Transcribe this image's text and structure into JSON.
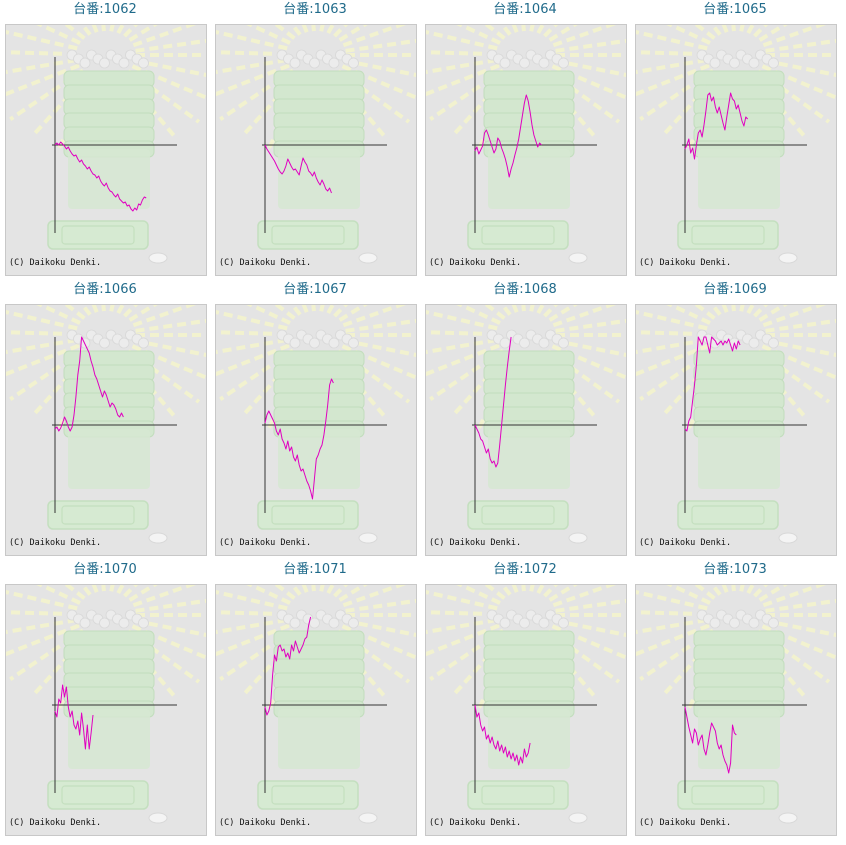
{
  "chart_data": [
    {
      "type": "line",
      "title": "台番:1062",
      "credit": "(C) Daikoku Denki.",
      "line_color": "#e000c0",
      "ylim": [
        -88,
        88
      ],
      "values": [
        0,
        2,
        0,
        3,
        1,
        -1,
        -4,
        -2,
        -6,
        -9,
        -11,
        -10,
        -14,
        -17,
        -15,
        -19,
        -21,
        -24,
        -22,
        -26,
        -29,
        -30,
        -33,
        -31,
        -36,
        -39,
        -41,
        -38,
        -43,
        -46,
        -47,
        -50,
        -52,
        -49,
        -54,
        -56,
        -58,
        -57,
        -61,
        -60,
        -64,
        -66,
        -63,
        -65,
        -59,
        -60,
        -55,
        -52,
        -53
      ]
    },
    {
      "type": "line",
      "title": "台番:1063",
      "credit": "(C) Daikoku Denki.",
      "line_color": "#e000c0",
      "ylim": [
        -88,
        88
      ],
      "values": [
        0,
        -4,
        -7,
        -10,
        -13,
        -16,
        -20,
        -24,
        -27,
        -29,
        -26,
        -21,
        -14,
        -18,
        -22,
        -25,
        -24,
        -27,
        -30,
        -21,
        -13,
        -17,
        -20,
        -26,
        -28,
        -31,
        -27,
        -33,
        -37,
        -40,
        -35,
        -39,
        -44,
        -46,
        -43,
        -48
      ]
    },
    {
      "type": "line",
      "title": "台番:1064",
      "credit": "(C) Daikoku Denki.",
      "line_color": "#e000c0",
      "ylim": [
        -88,
        88
      ],
      "values": [
        -6,
        -2,
        -9,
        -5,
        -1,
        12,
        15,
        10,
        4,
        -2,
        -8,
        -4,
        7,
        4,
        -3,
        -8,
        -14,
        -22,
        -32,
        -24,
        -18,
        -10,
        -3,
        6,
        18,
        30,
        42,
        50,
        44,
        33,
        20,
        10,
        4,
        -2,
        2,
        0
      ]
    },
    {
      "type": "line",
      "title": "台番:1065",
      "credit": "(C) Daikoku Denki.",
      "line_color": "#e000c0",
      "ylim": [
        -88,
        88
      ],
      "values": [
        -4,
        0,
        6,
        -8,
        -3,
        -14,
        0,
        12,
        15,
        8,
        20,
        34,
        50,
        52,
        44,
        48,
        38,
        32,
        38,
        30,
        22,
        15,
        28,
        40,
        52,
        46,
        44,
        36,
        40,
        32,
        24,
        19,
        28,
        26
      ]
    },
    {
      "type": "line",
      "title": "台番:1066",
      "credit": "(C) Daikoku Denki.",
      "line_color": "#e000c0",
      "ylim": [
        -88,
        88
      ],
      "values": [
        -4,
        -2,
        -6,
        -3,
        2,
        8,
        4,
        -2,
        -6,
        -2,
        10,
        28,
        50,
        64,
        88,
        84,
        80,
        76,
        72,
        64,
        58,
        50,
        46,
        40,
        34,
        28,
        34,
        30,
        24,
        18,
        22,
        20,
        16,
        10,
        8,
        12,
        8
      ]
    },
    {
      "type": "line",
      "title": "台番:1067",
      "credit": "(C) Daikoku Denki.",
      "line_color": "#e000c0",
      "ylim": [
        -88,
        88
      ],
      "values": [
        2,
        10,
        14,
        10,
        6,
        2,
        -6,
        -10,
        -4,
        -14,
        -18,
        -24,
        -16,
        -26,
        -22,
        -32,
        -36,
        -30,
        -40,
        -46,
        -44,
        -50,
        -56,
        -60,
        -66,
        -74,
        -54,
        -34,
        -30,
        -24,
        -20,
        -10,
        4,
        20,
        40,
        46,
        42
      ]
    },
    {
      "type": "line",
      "title": "台番:1068",
      "credit": "(C) Daikoku Denki.",
      "line_color": "#e000c0",
      "ylim": [
        -88,
        88
      ],
      "values": [
        0,
        -4,
        -8,
        -14,
        -16,
        -22,
        -28,
        -24,
        -34,
        -38,
        -36,
        -42,
        -38,
        -20,
        0,
        20,
        40,
        58,
        74,
        88
      ]
    },
    {
      "type": "line",
      "title": "台番:1069",
      "credit": "(C) Daikoku Denki.",
      "line_color": "#e000c0",
      "ylim": [
        -88,
        88
      ],
      "values": [
        -4,
        -6,
        4,
        8,
        24,
        40,
        60,
        88,
        84,
        80,
        88,
        88,
        80,
        72,
        88,
        86,
        84,
        80,
        82,
        84,
        80,
        84,
        82,
        86,
        80,
        74,
        82,
        76,
        84,
        80
      ]
    },
    {
      "type": "line",
      "title": "台番:1070",
      "credit": "(C) Daikoku Denki.",
      "line_color": "#e000c0",
      "ylim": [
        -88,
        88
      ],
      "values": [
        -6,
        -12,
        6,
        2,
        20,
        8,
        18,
        -2,
        -12,
        -6,
        -20,
        -24,
        -16,
        -30,
        -8,
        -24,
        -44,
        -20,
        -44,
        -28,
        -10
      ]
    },
    {
      "type": "line",
      "title": "台番:1071",
      "credit": "(C) Daikoku Denki.",
      "line_color": "#e000c0",
      "ylim": [
        -88,
        88
      ],
      "values": [
        -2,
        -10,
        -6,
        2,
        30,
        50,
        44,
        58,
        60,
        54,
        56,
        48,
        52,
        46,
        60,
        54,
        64,
        58,
        52,
        56,
        60,
        66,
        68,
        80,
        88
      ]
    },
    {
      "type": "line",
      "title": "台番:1072",
      "credit": "(C) Daikoku Denki.",
      "line_color": "#e000c0",
      "ylim": [
        -88,
        88
      ],
      "values": [
        0,
        -12,
        -8,
        -20,
        -26,
        -22,
        -34,
        -30,
        -38,
        -32,
        -40,
        -44,
        -36,
        -46,
        -40,
        -48,
        -42,
        -52,
        -46,
        -54,
        -48,
        -56,
        -50,
        -60,
        -52,
        -58,
        -44,
        -52,
        -48,
        -38
      ]
    },
    {
      "type": "line",
      "title": "台番:1073",
      "credit": "(C) Daikoku Denki.",
      "line_color": "#e000c0",
      "ylim": [
        -88,
        88
      ],
      "values": [
        -2,
        -12,
        -22,
        -30,
        -38,
        -24,
        -28,
        -40,
        -34,
        -30,
        -44,
        -50,
        -40,
        -28,
        -18,
        -22,
        -26,
        -38,
        -44,
        -40,
        -50,
        -56,
        -60,
        -68,
        -58,
        -20,
        -28,
        -30
      ]
    }
  ]
}
